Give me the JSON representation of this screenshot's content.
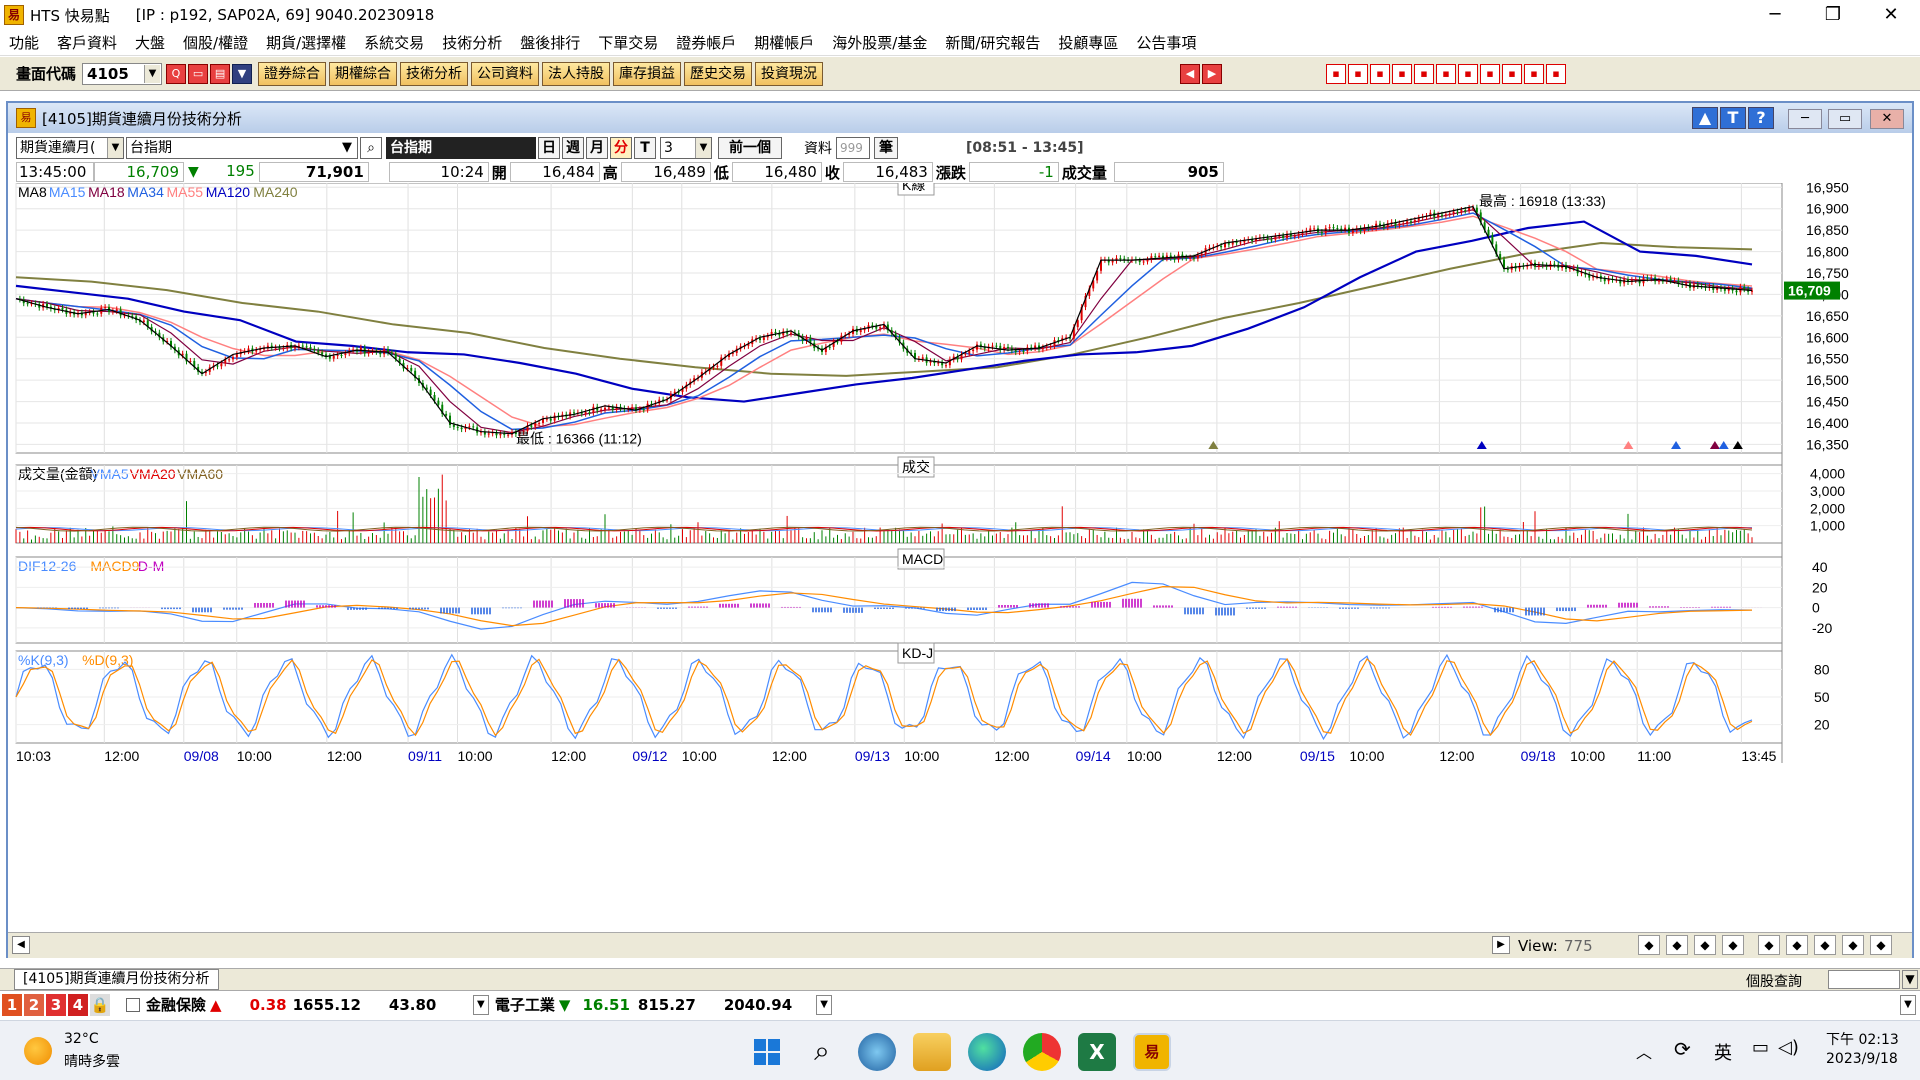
{
  "window": {
    "app_name": "HTS 快易點",
    "info": "[IP : p192, SAP02A, 69] 9040.20230918"
  },
  "menu": [
    "功能",
    "客戶資料",
    "大盤",
    "個股/權證",
    "期貨/選擇權",
    "系統交易",
    "技術分析",
    "盤後排行",
    "下單交易",
    "證券帳戶",
    "期權帳戶",
    "海外股票/基金",
    "新聞/研究報告",
    "投顧專區",
    "公告事項"
  ],
  "toolbar": {
    "code_label": "畫面代碼",
    "code_value": "4105",
    "buttons": [
      "證券綜合",
      "期權綜合",
      "技術分析",
      "公司資料",
      "法人持股",
      "庫存損益",
      "歷史交易",
      "投資現況"
    ]
  },
  "inner": {
    "title": "[4105]期貨連續月份技術分析"
  },
  "controls": {
    "type_select": "期貨連續月(",
    "symbol": "台指期",
    "symbol_name": "台指期",
    "periods": [
      "日",
      "週",
      "月",
      "分",
      "T"
    ],
    "minutes": "3",
    "prev_button": "前一個",
    "data_label": "資料",
    "data_count": "999",
    "unit": "筆",
    "time_range": "[08:51 - 13:45]"
  },
  "quote": {
    "time": "13:45:00",
    "price": "16,709",
    "change": "195",
    "volume_total": "71,901",
    "time2": "10:24",
    "open_label": "開",
    "open": "16,484",
    "high_label": "高",
    "high": "16,489",
    "low_label": "低",
    "low": "16,480",
    "close_label": "收",
    "close": "16,483",
    "chg_label": "漲跌",
    "chg": "-1",
    "vol_label": "成交量",
    "vol": "905"
  },
  "panels": {
    "k_title": "K線",
    "vol_title": "成交",
    "macd_title": "MACD",
    "kd_title": "KD-J"
  },
  "k_legend": [
    {
      "name": "MA8",
      "color": "#000000"
    },
    {
      "name": "MA15",
      "color": "#4a8cff"
    },
    {
      "name": "MA18",
      "color": "#800040"
    },
    {
      "name": "MA34",
      "color": "#2060e0"
    },
    {
      "name": "MA55",
      "color": "#ff8080"
    },
    {
      "name": "MA120",
      "color": "#0000c0"
    },
    {
      "name": "MA240",
      "color": "#808040"
    }
  ],
  "vol_legend": [
    {
      "name": "成交量(金額)",
      "color": "#000000"
    },
    {
      "name": "VMA5",
      "color": "#4a8cff"
    },
    {
      "name": "VMA20",
      "color": "#e00000"
    },
    {
      "name": "VMA60",
      "color": "#806020"
    }
  ],
  "macd_legend": [
    {
      "name": "DIF12-26",
      "color": "#4a8cff"
    },
    {
      "name": "MACD9",
      "color": "#ff8c00"
    },
    {
      "name": "D-M",
      "color": "#c000c0"
    }
  ],
  "kd_legend": [
    {
      "name": "%K(9,3)",
      "color": "#4a8cff"
    },
    {
      "name": "%D(9,3)",
      "color": "#ff8c00"
    }
  ],
  "annotations": {
    "high": "最高 : 16918 (13:33)",
    "low": "最低 : 16366 (11:12)",
    "last_price": "16,709"
  },
  "chart_data": [
    {
      "type": "line",
      "title": "K線",
      "y_ticks": [
        16350,
        16400,
        16450,
        16500,
        16550,
        16600,
        16650,
        16700,
        16750,
        16800,
        16850,
        16900,
        16950
      ],
      "ylim": [
        16330,
        16960
      ],
      "x_labels": [
        "10:03",
        "12:00",
        "09/08",
        "10:00",
        "12:00",
        "09/11",
        "10:00",
        "12:00",
        "09/12",
        "10:00",
        "12:00",
        "09/13",
        "10:00",
        "12:00",
        "09/14",
        "10:00",
        "12:00",
        "09/15",
        "10:00",
        "12:00",
        "09/18",
        "10:00",
        "11:00",
        "13:45"
      ],
      "x_label_pos": [
        0,
        0.05,
        0.095,
        0.125,
        0.176,
        0.222,
        0.25,
        0.303,
        0.349,
        0.377,
        0.428,
        0.475,
        0.503,
        0.554,
        0.6,
        0.629,
        0.68,
        0.727,
        0.755,
        0.806,
        0.852,
        0.88,
        0.918,
        0.977
      ],
      "price": [
        16690,
        16670,
        16655,
        16665,
        16640,
        16580,
        16515,
        16560,
        16575,
        16580,
        16555,
        16570,
        16565,
        16500,
        16400,
        16380,
        16375,
        16410,
        16420,
        16440,
        16430,
        16455,
        16505,
        16560,
        16600,
        16615,
        16570,
        16615,
        16630,
        16550,
        16540,
        16580,
        16570,
        16575,
        16600,
        16780,
        16780,
        16785,
        16790,
        16820,
        16830,
        16840,
        16850,
        16850,
        16860,
        16875,
        16890,
        16905,
        16760,
        16770,
        16765,
        16740,
        16730,
        16735,
        16720,
        16715,
        16709
      ],
      "ma120": [
        16720,
        16705,
        16690,
        16660,
        16640,
        16590,
        16580,
        16565,
        16560,
        16540,
        16515,
        16480,
        16460,
        16450,
        16470,
        16490,
        16505,
        16525,
        16545,
        16560,
        16565,
        16580,
        16620,
        16670,
        16740,
        16800,
        16825,
        16855,
        16870,
        16800,
        16790,
        16770
      ],
      "ma240": [
        16740,
        16730,
        16710,
        16680,
        16660,
        16630,
        16610,
        16575,
        16550,
        16530,
        16515,
        16510,
        16520,
        16530,
        16560,
        16600,
        16645,
        16680,
        16720,
        16760,
        16795,
        16820,
        16810,
        16805
      ]
    },
    {
      "type": "bar",
      "title": "成交",
      "y_ticks": [
        1000,
        2000,
        3000,
        4000
      ],
      "ylim": [
        0,
        4500
      ]
    },
    {
      "type": "line",
      "title": "MACD",
      "y_ticks": [
        -20,
        0,
        20,
        40
      ],
      "ylim": [
        -35,
        50
      ]
    },
    {
      "type": "line",
      "title": "KD-J",
      "y_ticks": [
        20,
        50,
        80
      ],
      "ylim": [
        0,
        100
      ]
    }
  ],
  "scroll": {
    "view_label": "View:",
    "view_value": "775"
  },
  "tabs": {
    "active": "[4105]期貨連續月份技術分析",
    "right_label": "個股查詢"
  },
  "ticker": {
    "nums": [
      "1",
      "2",
      "3",
      "4"
    ],
    "item1_name": "金融保險",
    "item1_change": "0.38",
    "item1_price": "1655.12",
    "item1_vol": "43.80",
    "item2_name": "電子工業",
    "item2_change": "16.51",
    "item2_price": "815.27",
    "item2_vol": "2040.94"
  },
  "taskbar": {
    "weather_temp": "32°C",
    "weather_desc": "晴時多雲",
    "ime": "英",
    "time": "下午 02:13",
    "date": "2023/9/18"
  }
}
